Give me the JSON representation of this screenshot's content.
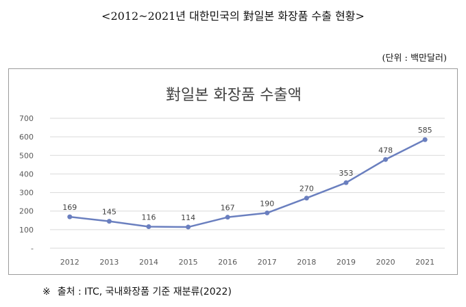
{
  "document": {
    "title": "<2012~2021년 대한민국의 對일본 화장품 수출 현황>",
    "unit": "(단위 : 백만달러)",
    "source_mark": "※",
    "source": "출처 : ITC, 국내화장품 기준 재분류(2022)"
  },
  "colors": {
    "line": "#6a7fbf",
    "grid": "#d9d9d9",
    "axis_text": "#595959",
    "label_text": "#404040"
  },
  "chart_data": {
    "type": "line",
    "title": "對일본 화장품 수출액",
    "categories": [
      "2012",
      "2013",
      "2014",
      "2015",
      "2016",
      "2017",
      "2018",
      "2019",
      "2020",
      "2021"
    ],
    "series": [
      {
        "values": [
          169,
          145,
          116,
          114,
          167,
          190,
          270,
          353,
          478,
          585
        ]
      }
    ],
    "ylim": [
      0,
      700
    ],
    "yticks": [
      0,
      100,
      200,
      300,
      400,
      500,
      600,
      700
    ],
    "ytick_labels": [
      "-",
      "100",
      "200",
      "300",
      "400",
      "500",
      "600",
      "700"
    ],
    "grid": true,
    "data_labels": true,
    "xlabel": "",
    "ylabel": ""
  }
}
